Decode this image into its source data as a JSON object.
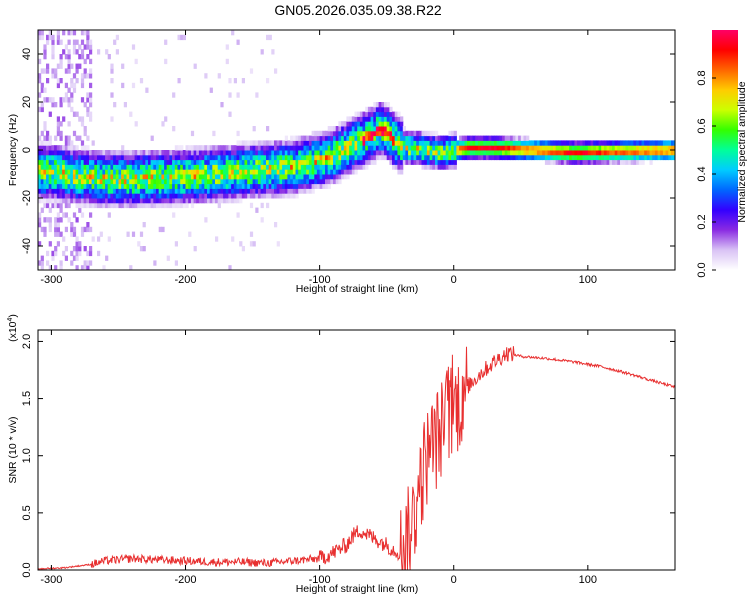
{
  "title": "GN05.2026.035.09.38.R22",
  "chart_data": [
    {
      "type": "heatmap",
      "name": "spectrogram",
      "xlabel": "Height of straight line (km)",
      "ylabel": "Frequency (Hz)",
      "xlim": [
        -310,
        165
      ],
      "ylim": [
        -50,
        50
      ],
      "xticks": [
        -300,
        -200,
        -100,
        0,
        100
      ],
      "yticks": [
        -40,
        -20,
        0,
        20,
        40
      ],
      "ridge": {
        "x": [
          -300,
          -280,
          -260,
          -240,
          -220,
          -200,
          -180,
          -160,
          -140,
          -120,
          -100,
          -90,
          -80,
          -70,
          -60,
          -55,
          -50,
          -45,
          -40,
          -35,
          -30,
          -20,
          -10,
          0,
          10,
          30,
          60,
          90,
          120,
          165
        ],
        "y": [
          -10,
          -12,
          -13,
          -13,
          -12.5,
          -12,
          -11,
          -10,
          -9,
          -8,
          -5,
          -3,
          0,
          3,
          6,
          8,
          6,
          3,
          1,
          0,
          0,
          -1,
          -2,
          -1,
          0,
          0,
          -1,
          -2,
          -1.5,
          -1
        ]
      },
      "colorbar": {
        "label": "Normalized spectral amplitude",
        "range": [
          0,
          1
        ],
        "ticks": [
          "0.0",
          "0.2",
          "0.4",
          "0.6",
          "0.8"
        ],
        "tick_values": [
          0,
          0.2,
          0.4,
          0.6,
          0.8
        ],
        "colors": [
          "#ffffff",
          "#d9c3f5",
          "#8a2be2",
          "#3300ff",
          "#0066ff",
          "#00ccff",
          "#00ff99",
          "#33ff00",
          "#ccff00",
          "#ffcc00",
          "#ff6600",
          "#ff0000",
          "#ff0066"
        ]
      }
    },
    {
      "type": "line",
      "name": "snr",
      "xlabel": "Height of straight line (km)",
      "ylabel": "SNR (10 * v/v)",
      "yscale_label": "(x10",
      "yscale_exp": "4",
      "xlim": [
        -310,
        165
      ],
      "ylim": [
        0,
        2.1
      ],
      "xticks": [
        -300,
        -200,
        -100,
        0,
        100
      ],
      "yticks": [
        "0.0",
        "0.5",
        "1.0",
        "1.5",
        "2.0"
      ],
      "ytick_values": [
        0,
        0.5,
        1.0,
        1.5,
        2.0
      ],
      "color": "#e83030",
      "series": [
        {
          "name": "SNR",
          "x": [
            -310,
            -290,
            -270,
            -260,
            -250,
            -240,
            -220,
            -200,
            -180,
            -160,
            -140,
            -120,
            -100,
            -90,
            -80,
            -75,
            -70,
            -60,
            -50,
            -45,
            -40,
            -35,
            -30,
            -25,
            -20,
            -15,
            -10,
            -5,
            0,
            5,
            10,
            20,
            30,
            40,
            50,
            70,
            90,
            110,
            130,
            150,
            165
          ],
          "y": [
            0.01,
            0.02,
            0.05,
            0.08,
            0.09,
            0.1,
            0.09,
            0.08,
            0.07,
            0.07,
            0.06,
            0.08,
            0.1,
            0.15,
            0.22,
            0.3,
            0.35,
            0.28,
            0.22,
            0.18,
            0.15,
            0.25,
            0.45,
            0.75,
            1.0,
            1.1,
            1.2,
            1.35,
            1.4,
            1.5,
            1.6,
            1.72,
            1.82,
            1.9,
            1.87,
            1.85,
            1.82,
            1.78,
            1.72,
            1.65,
            1.6
          ]
        }
      ]
    }
  ]
}
